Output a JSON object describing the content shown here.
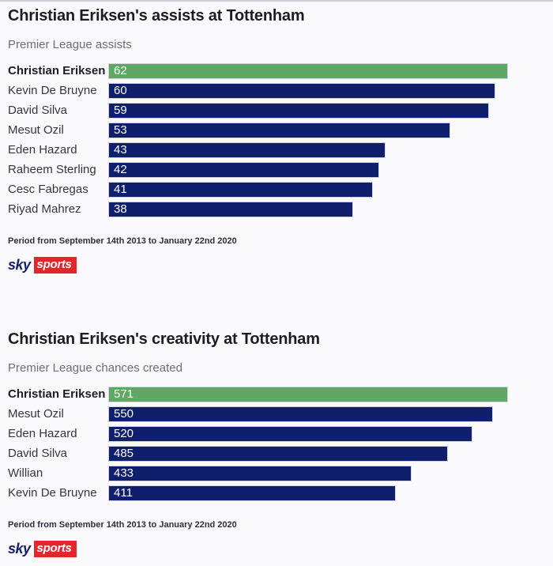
{
  "colors": {
    "background": "#fafafc",
    "bar_navy": "#0f1f6b",
    "bar_green": "#5ea764",
    "bar_border": "#d2d2da",
    "title_text": "#1c1c22",
    "subtitle_text": "#6d6d78",
    "label_text": "#35353f",
    "value_text": "#ffffff",
    "period_text": "#2d2d3c",
    "sky_navy": "#151f66",
    "sports_red": "#e4252c"
  },
  "branding": {
    "sky": "sky",
    "sports": "sports"
  },
  "chart_data": [
    {
      "type": "bar",
      "orientation": "horizontal",
      "title": "Christian Eriksen's assists at Tottenham",
      "subtitle": "Premier League assists",
      "categories": [
        "Christian Eriksen",
        "Kevin De Bruyne",
        "David Silva",
        "Mesut Ozil",
        "Eden Hazard",
        "Raheem Sterling",
        "Cesc Fabregas",
        "Riyad Mahrez"
      ],
      "values": [
        62,
        60,
        59,
        53,
        43,
        42,
        41,
        38
      ],
      "xlim": [
        0,
        62
      ],
      "highlight_index": 0,
      "highlight_category": "Christian Eriksen",
      "value_labels_shown": true,
      "grid": false,
      "legend": false,
      "footnote": "Period from September 14th 2013 to January 22nd 2020",
      "source_logo": "sky sports"
    },
    {
      "type": "bar",
      "orientation": "horizontal",
      "title": "Christian Eriksen's creativity at Tottenham",
      "subtitle": "Premier League chances created",
      "categories": [
        "Christian Eriksen",
        "Mesut Ozil",
        "Eden Hazard",
        "David Silva",
        "Willian",
        "Kevin De Bruyne"
      ],
      "values": [
        571,
        550,
        520,
        485,
        433,
        411
      ],
      "xlim": [
        0,
        571
      ],
      "highlight_index": 0,
      "highlight_category": "Christian Eriksen",
      "value_labels_shown": true,
      "grid": false,
      "legend": false,
      "footnote": "Period from September 14th 2013 to January 22nd 2020",
      "source_logo": "sky sports"
    }
  ]
}
